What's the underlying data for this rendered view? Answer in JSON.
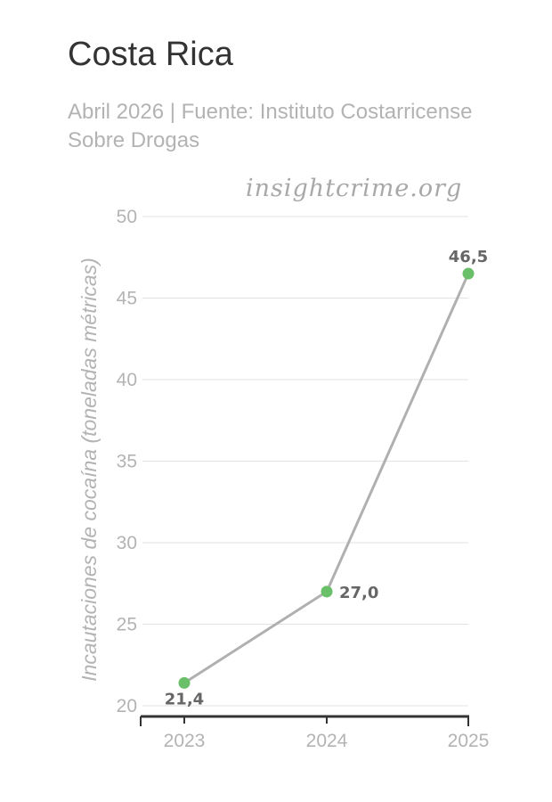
{
  "chart_data": {
    "type": "line",
    "title": "Costa Rica",
    "subtitle": "Abril 2026 | Fuente: Instituto Costarricense Sobre Drogas",
    "watermark": "insightcrime.org",
    "xlabel": "",
    "ylabel": "Incautaciones de cocaína (toneladas métricas)",
    "categories": [
      "2023",
      "2024",
      "2025"
    ],
    "values": [
      21.4,
      27.0,
      46.5
    ],
    "data_labels": [
      "21,4",
      "27,0",
      "46,5"
    ],
    "yticks": [
      20,
      25,
      30,
      35,
      40,
      45,
      50
    ],
    "ylim": [
      20,
      50
    ],
    "grid": true,
    "colors": {
      "line": "#b0b0b0",
      "marker": "#6abf69",
      "grid": "#e2e2e2",
      "axis": "#333333",
      "tick_text": "#b3b3b3",
      "data_label": "#666666"
    }
  }
}
